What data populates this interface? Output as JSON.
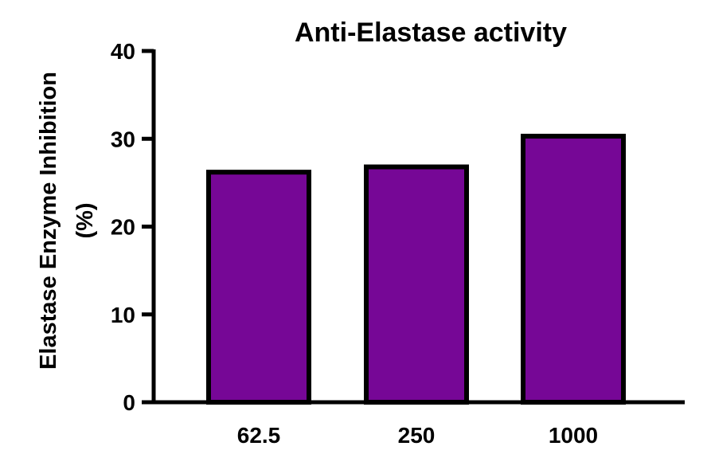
{
  "chart_data": {
    "type": "bar",
    "title": "Anti-Elastase activity",
    "xlabel": "",
    "ylabel_lines": [
      "Elastase Enzyme Inhibition",
      "(%)"
    ],
    "categories": [
      "62.5",
      "250",
      "1000"
    ],
    "values": [
      26.2,
      26.8,
      30.3
    ],
    "ylim": [
      0,
      40
    ],
    "yticks": [
      "0",
      "10",
      "20",
      "30",
      "40"
    ],
    "bar_color": "#760796",
    "grid": false,
    "legend": "none"
  }
}
